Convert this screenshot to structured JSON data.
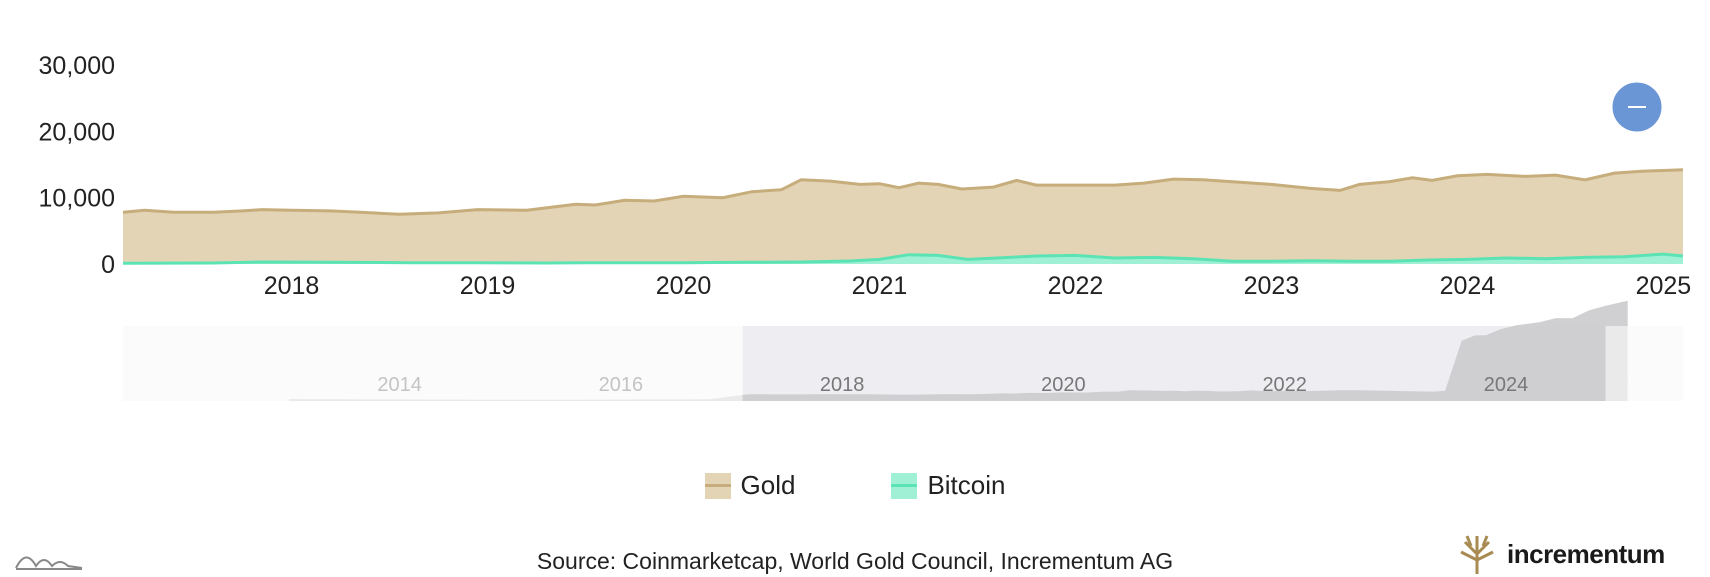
{
  "chart_data": {
    "type": "area",
    "title": "",
    "xlabel": "",
    "ylabel": "",
    "x_ticks": [
      "2018",
      "2019",
      "2020",
      "2021",
      "2022",
      "2023",
      "2024",
      "2025"
    ],
    "y_ticks": [
      "0",
      "10,000",
      "20,000",
      "30,000"
    ],
    "ylim": [
      0,
      30000
    ],
    "xlim": [
      2017.14,
      2025.1
    ],
    "grid": false,
    "legend_position": "bottom",
    "series": [
      {
        "name": "Gold",
        "color": "#e2d4b5",
        "line_color": "#c6ad7b",
        "points": [
          [
            2017.14,
            7800
          ],
          [
            2017.25,
            8100
          ],
          [
            2017.4,
            7800
          ],
          [
            2017.6,
            7800
          ],
          [
            2017.75,
            8000
          ],
          [
            2017.85,
            8200
          ],
          [
            2018.0,
            8100
          ],
          [
            2018.2,
            8000
          ],
          [
            2018.35,
            7800
          ],
          [
            2018.55,
            7500
          ],
          [
            2018.75,
            7700
          ],
          [
            2018.95,
            8200
          ],
          [
            2019.2,
            8100
          ],
          [
            2019.45,
            9000
          ],
          [
            2019.55,
            8900
          ],
          [
            2019.7,
            9600
          ],
          [
            2019.85,
            9500
          ],
          [
            2020.0,
            10200
          ],
          [
            2020.2,
            10000
          ],
          [
            2020.35,
            10900
          ],
          [
            2020.5,
            11200
          ],
          [
            2020.6,
            12700
          ],
          [
            2020.75,
            12500
          ],
          [
            2020.9,
            12000
          ],
          [
            2021.0,
            12100
          ],
          [
            2021.1,
            11500
          ],
          [
            2021.2,
            12200
          ],
          [
            2021.3,
            12000
          ],
          [
            2021.42,
            11300
          ],
          [
            2021.58,
            11600
          ],
          [
            2021.7,
            12600
          ],
          [
            2021.8,
            11900
          ],
          [
            2022.0,
            11900
          ],
          [
            2022.2,
            11900
          ],
          [
            2022.35,
            12200
          ],
          [
            2022.5,
            12800
          ],
          [
            2022.65,
            12700
          ],
          [
            2022.85,
            12300
          ],
          [
            2023.0,
            12000
          ],
          [
            2023.2,
            11400
          ],
          [
            2023.35,
            11100
          ],
          [
            2023.45,
            12000
          ],
          [
            2023.6,
            12400
          ],
          [
            2023.72,
            13000
          ],
          [
            2023.82,
            12600
          ],
          [
            2023.95,
            13300
          ],
          [
            2024.1,
            13500
          ],
          [
            2024.3,
            13200
          ],
          [
            2024.45,
            13400
          ],
          [
            2024.6,
            12700
          ],
          [
            2024.75,
            13700
          ],
          [
            2024.9,
            14000
          ],
          [
            2025.0,
            14100
          ],
          [
            2025.1,
            14200
          ]
        ]
      },
      {
        "name": "Bitcoin",
        "color": "#9ff0d4",
        "line_color": "#5ce3b4",
        "points": [
          [
            2017.14,
            100
          ],
          [
            2017.6,
            150
          ],
          [
            2017.85,
            300
          ],
          [
            2018.2,
            250
          ],
          [
            2018.6,
            200
          ],
          [
            2018.95,
            180
          ],
          [
            2019.3,
            150
          ],
          [
            2019.5,
            200
          ],
          [
            2019.8,
            180
          ],
          [
            2020.0,
            200
          ],
          [
            2020.3,
            250
          ],
          [
            2020.6,
            300
          ],
          [
            2020.85,
            450
          ],
          [
            2021.0,
            700
          ],
          [
            2021.15,
            1400
          ],
          [
            2021.3,
            1300
          ],
          [
            2021.45,
            700
          ],
          [
            2021.6,
            900
          ],
          [
            2021.8,
            1200
          ],
          [
            2022.0,
            1300
          ],
          [
            2022.2,
            900
          ],
          [
            2022.4,
            1000
          ],
          [
            2022.6,
            800
          ],
          [
            2022.8,
            400
          ],
          [
            2023.0,
            400
          ],
          [
            2023.2,
            500
          ],
          [
            2023.4,
            400
          ],
          [
            2023.6,
            400
          ],
          [
            2023.8,
            600
          ],
          [
            2024.0,
            700
          ],
          [
            2024.2,
            900
          ],
          [
            2024.4,
            800
          ],
          [
            2024.6,
            1000
          ],
          [
            2024.8,
            1100
          ],
          [
            2025.0,
            1500
          ],
          [
            2025.1,
            1200
          ]
        ]
      }
    ],
    "navigator": {
      "x_ticks": [
        "2014",
        "2016",
        "2018",
        "2020",
        "2022",
        "2024"
      ],
      "selected_range": [
        "2017",
        "2025"
      ]
    }
  },
  "legend": {
    "gold_label": "Gold",
    "bitcoin_label": "Bitcoin"
  },
  "footer": {
    "source": "Source: Coinmarketcap, World Gold Council, Incrementum AG",
    "brand": "incrementum"
  },
  "colors": {
    "gold_fill": "#e2d4b5",
    "gold_line": "#c6ad7b",
    "bitcoin_fill": "#9ff0d4",
    "bitcoin_line": "#5ce3b4",
    "marker": "#6b96d6",
    "navigator_fill": "#cbcbcd"
  }
}
